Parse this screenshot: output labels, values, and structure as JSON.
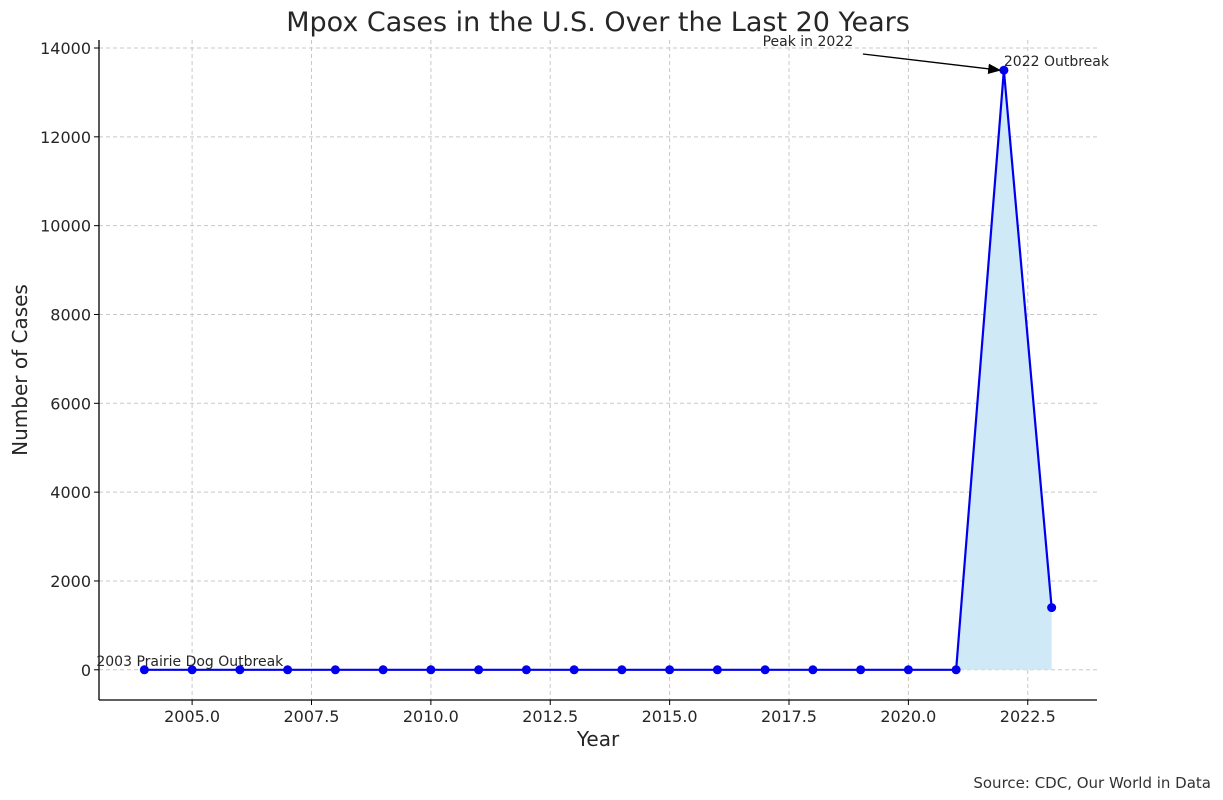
{
  "chart_data": {
    "type": "line",
    "title": "Mpox Cases in the U.S. Over the Last 20 Years",
    "xlabel": "Year",
    "ylabel": "Number of Cases",
    "xlim": [
      2003.05,
      2023.95
    ],
    "ylim": [
      -680,
      14180
    ],
    "xticks": [
      2005.0,
      2007.5,
      2010.0,
      2012.5,
      2015.0,
      2017.5,
      2020.0,
      2022.5
    ],
    "xtick_labels": [
      "2005.0",
      "2007.5",
      "2010.0",
      "2012.5",
      "2015.0",
      "2017.5",
      "2020.0",
      "2022.5"
    ],
    "yticks": [
      0,
      2000,
      4000,
      6000,
      8000,
      10000,
      12000,
      14000
    ],
    "ytick_labels": [
      "0",
      "2000",
      "4000",
      "6000",
      "8000",
      "10000",
      "12000",
      "14000"
    ],
    "grid": true,
    "series": [
      {
        "color": "#0000ee",
        "fill_color": "#cfe9f6",
        "fill_from_x": 2021,
        "x": [
          2004,
          2005,
          2006,
          2007,
          2008,
          2009,
          2010,
          2011,
          2012,
          2013,
          2014,
          2015,
          2016,
          2017,
          2018,
          2019,
          2020,
          2021,
          2022,
          2023
        ],
        "y": [
          0,
          0,
          0,
          0,
          0,
          0,
          0,
          0,
          0,
          0,
          0,
          0,
          0,
          0,
          0,
          0,
          0,
          0,
          13500,
          1400
        ]
      }
    ],
    "annotations": [
      {
        "text": "2003 Prairie Dog Outbreak",
        "x": 2004,
        "y": 0,
        "align": "start"
      },
      {
        "text": "2022 Outbreak",
        "x": 2022,
        "y": 13500,
        "align": "start"
      },
      {
        "text": "Peak in 2022",
        "x": 2022,
        "y": 13500,
        "arrow": true,
        "text_x": 2018,
        "text_y": 14000
      }
    ]
  },
  "source_note": "Source: CDC, Our World in Data"
}
